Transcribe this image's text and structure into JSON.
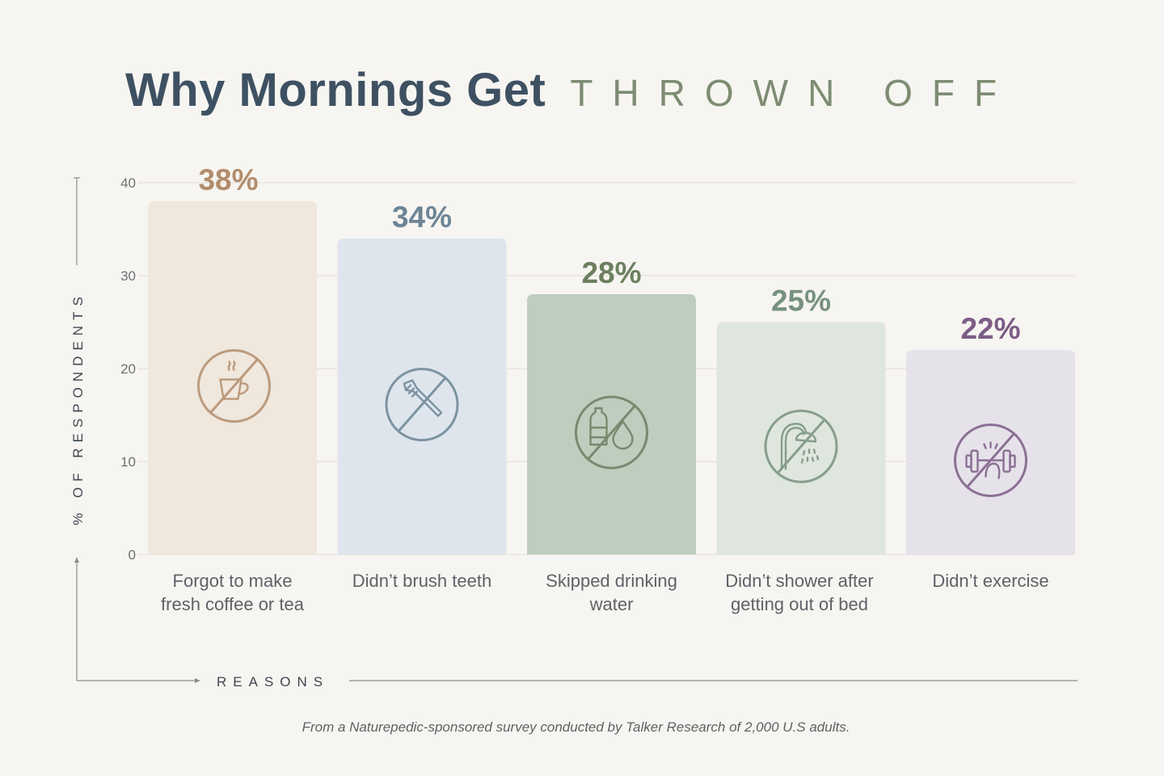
{
  "title": {
    "main": "Why Mornings Get",
    "accent": "THROWN OFF"
  },
  "colors": {
    "title": "#3e5162",
    "accent": "#7d8c72",
    "grid": "#e8e5df",
    "axis": "#8a8c8c",
    "background": "#f7f5f1"
  },
  "chart_data": {
    "type": "bar",
    "title": "Why Mornings Get THROWN OFF",
    "xlabel": "REASONS",
    "ylabel": "% OF RESPONDENTS",
    "ylim": [
      0,
      40
    ],
    "yticks": [
      0,
      10,
      20,
      30,
      40
    ],
    "grid": true,
    "categories": [
      "Forgot to make\nfresh coffee or tea",
      "Didn’t brush teeth",
      "Skipped drinking\nwater",
      "Didn’t shower after\ngetting out of bed",
      "Didn’t exercise"
    ],
    "values": [
      38,
      34,
      28,
      25,
      22
    ],
    "data_labels": [
      "38%",
      "34%",
      "28%",
      "25%",
      "22%"
    ],
    "bar_colors": [
      "#f0e7dd",
      "#dee5ec",
      "#bfcdbf",
      "#dfe6de",
      "#e6e2ea"
    ],
    "label_colors": [
      "#b28d6d",
      "#6d8596",
      "#6c7f60",
      "#77917f",
      "#7c5d86"
    ],
    "icons": [
      "no-coffee-icon",
      "no-toothbrush-icon",
      "no-water-bottle-icon",
      "no-shower-icon",
      "no-dumbbell-icon"
    ]
  },
  "footnote": "From a Naturepedic-sponsored survey conducted by Talker Research of 2,000 U.S adults."
}
